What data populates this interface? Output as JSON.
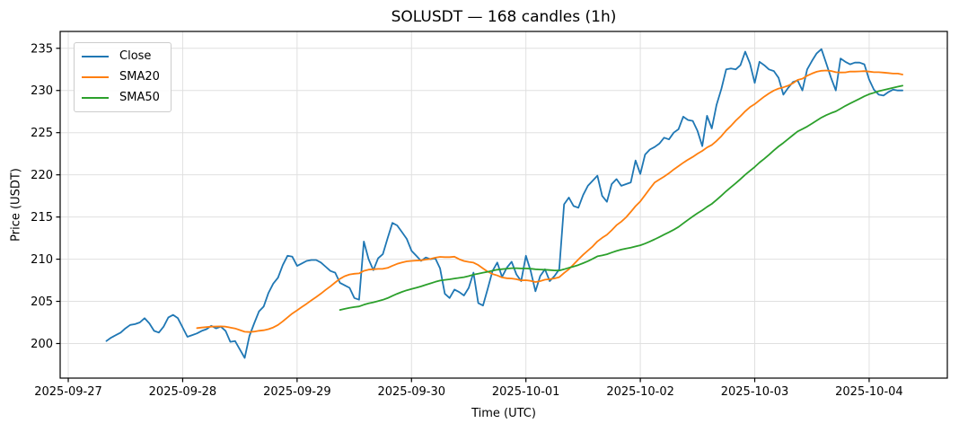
{
  "title": "SOLUSDT — 168 candles (1h)",
  "colors": {
    "background": "#ffffff",
    "grid": "#e0e0e0",
    "spine": "#000000",
    "text": "#000000",
    "close_line": "#1f77b4",
    "sma20_line": "#ff7f0e",
    "sma50_line": "#2ca02c"
  },
  "legend": {
    "position": "upper left",
    "entries": [
      "Close",
      "SMA20",
      "SMA50"
    ]
  },
  "chart_data": {
    "type": "line",
    "title": "SOLUSDT — 168 candles (1h)",
    "xlabel": "Time (UTC)",
    "ylabel": "Price (USDT)",
    "interval": "1h",
    "candle_count": 168,
    "grid": true,
    "legend_position": "upper left",
    "x_tick_labels": [
      "2025-09-27",
      "2025-09-28",
      "2025-09-29",
      "2025-09-30",
      "2025-10-01",
      "2025-10-02",
      "2025-10-03",
      "2025-10-04"
    ],
    "x_tick_hours": [
      0,
      24,
      48,
      72,
      96,
      120,
      144,
      168
    ],
    "first_candle_hour_offset": 8,
    "xlim_hours": [
      -1.7,
      184.4
    ],
    "y_ticks": [
      200,
      205,
      210,
      215,
      220,
      225,
      230,
      235
    ],
    "ylim": [
      195.9,
      237.0
    ],
    "series": [
      {
        "name": "Close",
        "color": "#1f77b4",
        "values": [
          200.3,
          200.7,
          201.0,
          201.3,
          201.8,
          202.2,
          202.3,
          202.5,
          203.0,
          202.4,
          201.5,
          201.3,
          202.0,
          203.1,
          203.4,
          203.0,
          201.9,
          200.8,
          201.0,
          201.2,
          201.5,
          201.7,
          202.1,
          201.8,
          202.0,
          201.5,
          200.2,
          200.3,
          199.3,
          198.3,
          200.9,
          202.4,
          203.8,
          204.4,
          206.0,
          207.1,
          207.8,
          209.3,
          210.4,
          210.3,
          209.2,
          209.5,
          209.8,
          209.9,
          209.9,
          209.6,
          209.1,
          208.6,
          208.4,
          207.2,
          206.9,
          206.6,
          205.4,
          205.2,
          212.1,
          210.0,
          208.7,
          210.1,
          210.6,
          212.5,
          214.3,
          214.0,
          213.2,
          212.4,
          211.0,
          210.4,
          209.8,
          210.2,
          210.0,
          210.1,
          208.9,
          205.9,
          205.4,
          206.4,
          206.1,
          205.7,
          206.6,
          208.4,
          204.8,
          204.5,
          206.5,
          208.6,
          209.6,
          207.9,
          209.0,
          209.7,
          208.2,
          207.4,
          210.4,
          208.6,
          206.2,
          208.0,
          208.8,
          207.4,
          208.0,
          208.8,
          216.5,
          217.3,
          216.3,
          216.1,
          217.6,
          218.7,
          219.3,
          219.9,
          217.5,
          216.8,
          218.9,
          219.5,
          218.7,
          218.9,
          219.1,
          221.7,
          220.1,
          222.4,
          223.0,
          223.3,
          223.7,
          224.4,
          224.2,
          225.0,
          225.4,
          226.9,
          226.5,
          226.4,
          225.2,
          223.4,
          227.0,
          225.5,
          228.3,
          230.2,
          232.5,
          232.6,
          232.5,
          233.0,
          234.6,
          233.2,
          230.9,
          233.4,
          233.0,
          232.5,
          232.3,
          231.5,
          229.5,
          230.3,
          231.0,
          231.2,
          230.0,
          232.5,
          233.5,
          234.4,
          234.9,
          233.2,
          231.5,
          230.0,
          233.8,
          233.4,
          233.1,
          233.3,
          233.3,
          233.1,
          231.3,
          230.1,
          229.5,
          229.4,
          229.8,
          230.1,
          230.0,
          230.0
        ]
      },
      {
        "name": "SMA20",
        "color": "#ff7f0e",
        "window": 20,
        "derived": "rolling_mean_of_close"
      },
      {
        "name": "SMA50",
        "color": "#2ca02c",
        "window": 50,
        "derived": "rolling_mean_of_close"
      }
    ]
  }
}
